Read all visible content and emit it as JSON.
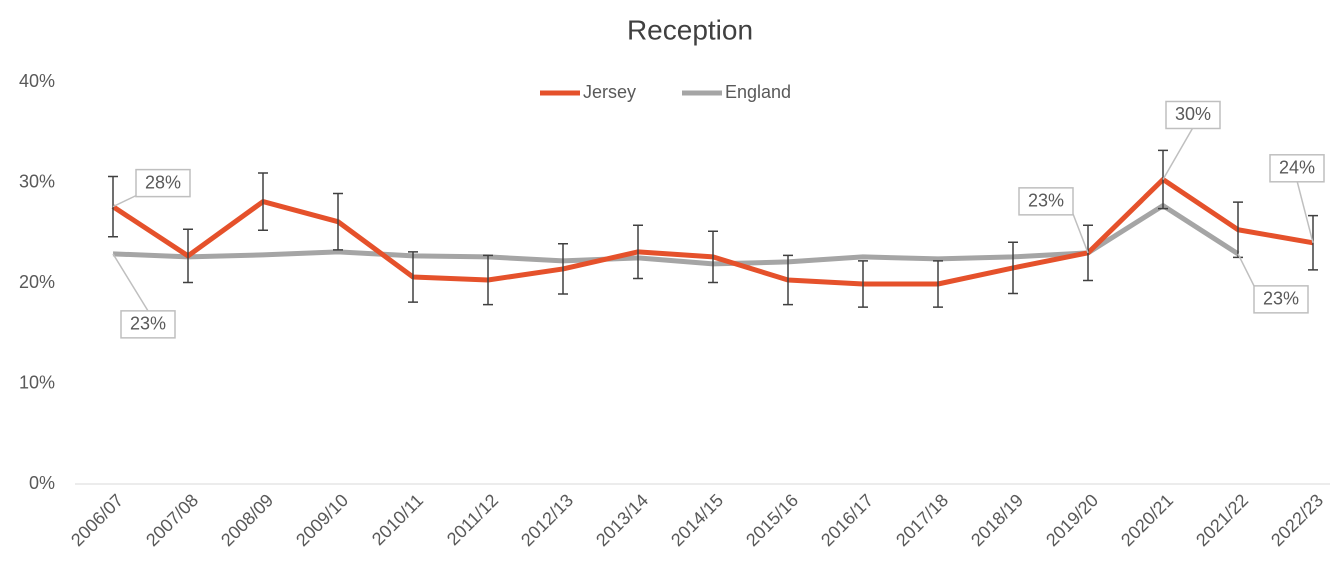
{
  "chart_data": {
    "type": "line",
    "title": "Reception",
    "categories": [
      "2006/07",
      "2007/08",
      "2008/09",
      "2009/10",
      "2010/11",
      "2011/12",
      "2012/13",
      "2013/14",
      "2014/15",
      "2015/16",
      "2016/17",
      "2017/18",
      "2018/19",
      "2019/20",
      "2020/21",
      "2021/22",
      "2022/23"
    ],
    "series": [
      {
        "name": "Jersey",
        "color": "#E5512B",
        "values": [
          27.6,
          22.7,
          28.1,
          26.1,
          20.6,
          20.3,
          21.4,
          23.1,
          22.6,
          20.3,
          19.9,
          19.9,
          21.5,
          23.0,
          30.3,
          25.3,
          24.0
        ],
        "errors": [
          3.0,
          2.65,
          2.85,
          2.8,
          2.5,
          2.45,
          2.5,
          2.65,
          2.55,
          2.45,
          2.3,
          2.3,
          2.55,
          2.75,
          2.9,
          2.75,
          2.7
        ],
        "value_labels": [
          "28%",
          null,
          null,
          null,
          null,
          null,
          null,
          null,
          null,
          null,
          null,
          null,
          null,
          "23%",
          "30%",
          null,
          "24%"
        ]
      },
      {
        "name": "England",
        "color": "#A5A5A5",
        "values": [
          22.9,
          22.6,
          22.8,
          23.1,
          22.7,
          22.6,
          22.2,
          22.5,
          21.9,
          22.1,
          22.6,
          22.4,
          22.6,
          23.0,
          27.7,
          22.9,
          null
        ],
        "value_labels": [
          "23%",
          null,
          null,
          null,
          null,
          null,
          null,
          null,
          null,
          null,
          null,
          null,
          null,
          null,
          null,
          "23%",
          null
        ]
      }
    ],
    "ylim": [
      0,
      40
    ],
    "yticks": [
      {
        "value": 0,
        "label": "0%"
      },
      {
        "value": 10,
        "label": "10%"
      },
      {
        "value": 20,
        "label": "20%"
      },
      {
        "value": 30,
        "label": "30%"
      },
      {
        "value": 40,
        "label": "40%"
      }
    ],
    "legend": "top",
    "grid": false
  }
}
